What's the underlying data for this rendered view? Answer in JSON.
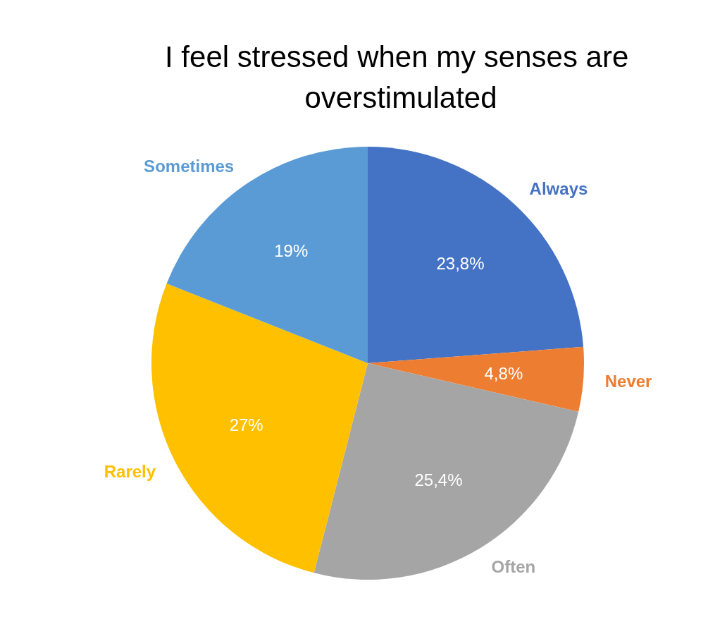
{
  "chart_data": {
    "type": "pie",
    "title": "I feel stressed when my senses are overstimulated",
    "categories": [
      "Always",
      "Never",
      "Often",
      "Rarely",
      "Sometimes"
    ],
    "values": [
      23.8,
      4.8,
      25.4,
      27,
      19
    ],
    "colors": [
      "#4472c4",
      "#ed7d31",
      "#a5a5a5",
      "#ffc000",
      "#5b9bd5"
    ],
    "value_labels": [
      "23,8%",
      "4,8%",
      "25,4%",
      "27%",
      "19%"
    ],
    "legend": false
  }
}
